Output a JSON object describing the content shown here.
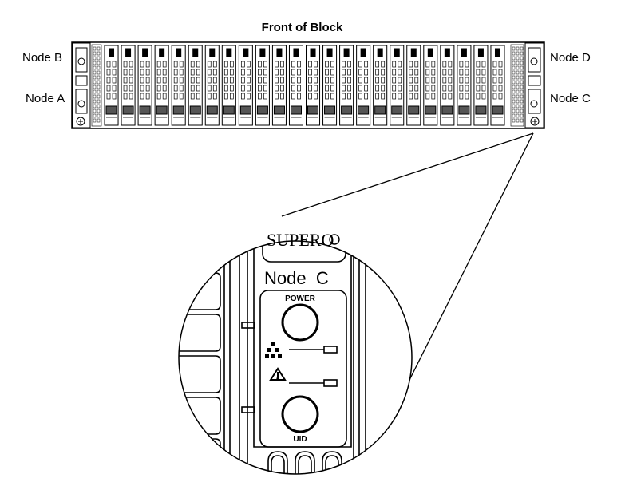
{
  "title": "Front of Block",
  "nodes": {
    "top_left": "Node B",
    "bottom_left": "Node A",
    "top_right": "Node D",
    "bottom_right": "Node C"
  },
  "chassis": {
    "drive_bay_count": 24
  },
  "zoom_panel": {
    "brand": "SUPERO",
    "node_label": "Node  C",
    "power_label": "POWER",
    "uid_label": "UID",
    "icons": [
      "network-activity-icon",
      "warning-icon"
    ]
  }
}
